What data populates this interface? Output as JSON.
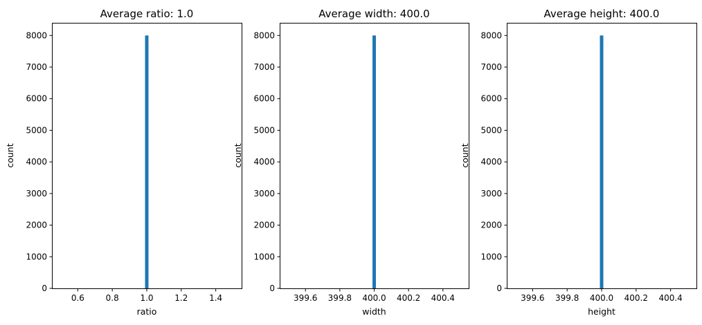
{
  "chart_data": [
    {
      "type": "bar",
      "title": "Average ratio: 1.0",
      "xlabel": "ratio",
      "ylabel": "count",
      "xlim": [
        0.45,
        1.55
      ],
      "ylim": [
        0,
        8400
      ],
      "xticks": [
        0.6,
        0.8,
        1.0,
        1.2,
        1.4
      ],
      "xtick_labels": [
        "0.6",
        "0.8",
        "1.0",
        "1.2",
        "1.4"
      ],
      "yticks": [
        0,
        1000,
        2000,
        3000,
        4000,
        5000,
        6000,
        7000,
        8000
      ],
      "ytick_labels": [
        "0",
        "1000",
        "2000",
        "3000",
        "4000",
        "5000",
        "6000",
        "7000",
        "8000"
      ],
      "bins": [
        {
          "x0": 0.99,
          "x1": 1.01,
          "value": 8000
        }
      ],
      "grid": false
    },
    {
      "type": "bar",
      "title": "Average width: 400.0",
      "xlabel": "width",
      "ylabel": "count",
      "xlim": [
        399.45,
        400.55
      ],
      "ylim": [
        0,
        8400
      ],
      "xticks": [
        399.6,
        399.8,
        400.0,
        400.2,
        400.4
      ],
      "xtick_labels": [
        "399.6",
        "399.8",
        "400.0",
        "400.2",
        "400.4"
      ],
      "yticks": [
        0,
        1000,
        2000,
        3000,
        4000,
        5000,
        6000,
        7000,
        8000
      ],
      "ytick_labels": [
        "0",
        "1000",
        "2000",
        "3000",
        "4000",
        "5000",
        "6000",
        "7000",
        "8000"
      ],
      "bins": [
        {
          "x0": 399.99,
          "x1": 400.01,
          "value": 8000
        }
      ],
      "grid": false
    },
    {
      "type": "bar",
      "title": "Average height: 400.0",
      "xlabel": "height",
      "ylabel": "count",
      "xlim": [
        399.45,
        400.55
      ],
      "ylim": [
        0,
        8400
      ],
      "xticks": [
        399.6,
        399.8,
        400.0,
        400.2,
        400.4
      ],
      "xtick_labels": [
        "399.6",
        "399.8",
        "400.0",
        "400.2",
        "400.4"
      ],
      "yticks": [
        0,
        1000,
        2000,
        3000,
        4000,
        5000,
        6000,
        7000,
        8000
      ],
      "ytick_labels": [
        "0",
        "1000",
        "2000",
        "3000",
        "4000",
        "5000",
        "6000",
        "7000",
        "8000"
      ],
      "bins": [
        {
          "x0": 399.99,
          "x1": 400.01,
          "value": 8000
        }
      ],
      "grid": false
    }
  ],
  "colors": {
    "bar": "#1f77b4",
    "axis": "#000000"
  }
}
